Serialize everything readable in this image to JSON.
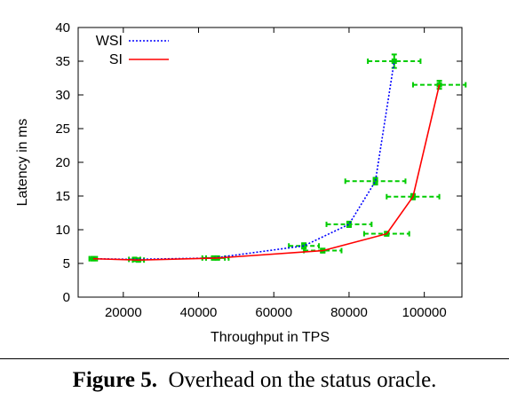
{
  "chart_data": {
    "type": "line",
    "xlabel": "Throughput in TPS",
    "ylabel": "Latency in ms",
    "xlim": [
      8000,
      110000
    ],
    "ylim": [
      0,
      40
    ],
    "xticks": [
      "20000",
      "40000",
      "60000",
      "80000",
      "100000"
    ],
    "yticks": [
      "0",
      "5",
      "10",
      "15",
      "20",
      "25",
      "30",
      "35",
      "40"
    ],
    "grid": false,
    "legend_position": "top-left",
    "series": [
      {
        "name": "WSI",
        "style": "dotted",
        "color": "#0000ff",
        "points": [
          {
            "x": 12000,
            "y": 5.7,
            "xerr": 1000,
            "yerr": 0.2
          },
          {
            "x": 23000,
            "y": 5.6,
            "xerr": 1500,
            "yerr": 0.2
          },
          {
            "x": 44000,
            "y": 5.8,
            "xerr": 3000,
            "yerr": 0.2
          },
          {
            "x": 68000,
            "y": 7.6,
            "xerr": 4000,
            "yerr": 0.4
          },
          {
            "x": 80000,
            "y": 10.8,
            "xerr": 6000,
            "yerr": 0.4
          },
          {
            "x": 87000,
            "y": 17.2,
            "xerr": 8000,
            "yerr": 0.5
          },
          {
            "x": 92000,
            "y": 35.0,
            "xerr": 7000,
            "yerr": 1.0
          }
        ]
      },
      {
        "name": "SI",
        "style": "solid",
        "color": "#ff0000",
        "points": [
          {
            "x": 12000,
            "y": 5.7,
            "xerr": 1000,
            "yerr": 0.2
          },
          {
            "x": 24000,
            "y": 5.5,
            "xerr": 1500,
            "yerr": 0.2
          },
          {
            "x": 45000,
            "y": 5.8,
            "xerr": 3000,
            "yerr": 0.2
          },
          {
            "x": 73000,
            "y": 6.9,
            "xerr": 5000,
            "yerr": 0.3
          },
          {
            "x": 90000,
            "y": 9.4,
            "xerr": 6000,
            "yerr": 0.3
          },
          {
            "x": 97000,
            "y": 14.9,
            "xerr": 7000,
            "yerr": 0.4
          },
          {
            "x": 104000,
            "y": 31.5,
            "xerr": 7000,
            "yerr": 0.6
          }
        ]
      }
    ],
    "error_bar_color": "#00cc00"
  },
  "caption": {
    "label": "Figure 5.",
    "text": "Overhead on the status oracle."
  }
}
